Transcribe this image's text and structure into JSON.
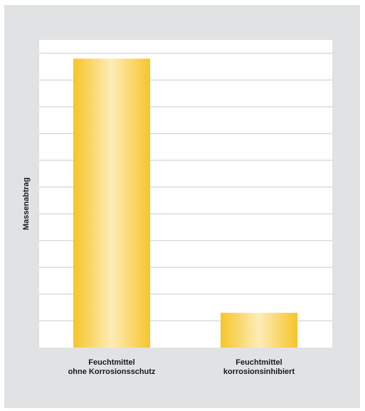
{
  "chart_data": {
    "type": "bar",
    "categories": [
      {
        "line1": "Feuchtmittel",
        "line2": "ohne Korrosionsschutz"
      },
      {
        "line1": "Feuchtmittel",
        "line2": "korrosionsinhibiert"
      }
    ],
    "values": [
      10.8,
      1.3
    ],
    "ylabel": "Massenabtrag",
    "xlabel": "",
    "ylim": [
      0,
      11.5
    ],
    "y_gridline_step": 1,
    "y_tick_labels_shown": false,
    "grid": true,
    "legend": "none"
  },
  "colors": {
    "frame_background": "#e1e2e4",
    "plot_background": "#ffffff",
    "gridline": "#dadbdd",
    "bar_edge": "#f6c52b",
    "bar_center": "#fdecb7"
  }
}
